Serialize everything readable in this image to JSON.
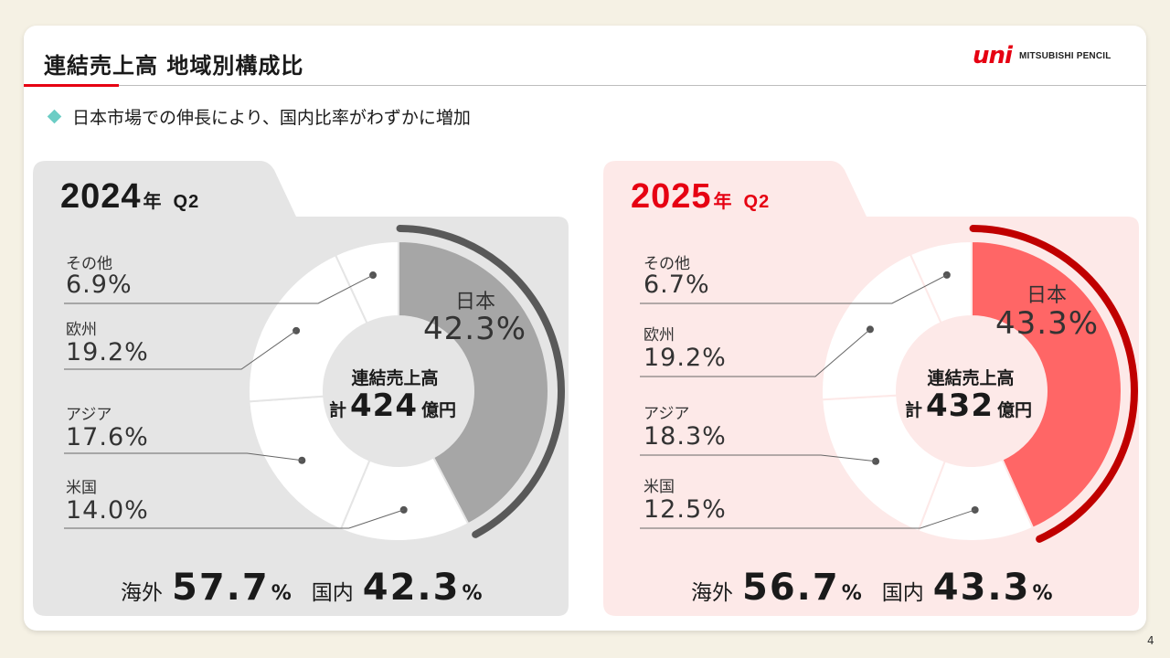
{
  "title": "連結売上高 地域別構成比",
  "logo": {
    "mark": "uni",
    "brand": "MITSUBISHI PENCIL"
  },
  "bullet": "日本市場での伸長により、国内比率がわずかに増加",
  "page_number": "4",
  "colors": {
    "panel_2024_bg": "#e5e5e5",
    "panel_2025_bg": "#fde9e8",
    "japan_2024": "#a6a6a6",
    "japan_2025": "#ff6666",
    "arc_2024": "#595959",
    "arc_2025": "#c00000",
    "year_2025": "#e60012"
  },
  "panels": [
    {
      "year": "2024",
      "nen": "年",
      "quarter": "Q2",
      "center_label": "連結売上高",
      "center_prefix": "計",
      "center_value": "424",
      "center_unit": "億円",
      "japan_label": "日本",
      "japan_pct": "42.3%",
      "labels": [
        {
          "name": "その他",
          "pct": "6.9%"
        },
        {
          "name": "欧州",
          "pct": "19.2%"
        },
        {
          "name": "アジア",
          "pct": "17.6%"
        },
        {
          "name": "米国",
          "pct": "14.0%"
        }
      ],
      "overseas_label": "海外",
      "overseas_value": "57.7",
      "domestic_label": "国内",
      "domestic_value": "42.3",
      "pct_sign": "%"
    },
    {
      "year": "2025",
      "nen": "年",
      "quarter": "Q2",
      "center_label": "連結売上高",
      "center_prefix": "計",
      "center_value": "432",
      "center_unit": "億円",
      "japan_label": "日本",
      "japan_pct": "43.3%",
      "labels": [
        {
          "name": "その他",
          "pct": "6.7%"
        },
        {
          "name": "欧州",
          "pct": "19.2%"
        },
        {
          "name": "アジア",
          "pct": "18.3%"
        },
        {
          "name": "米国",
          "pct": "12.5%"
        }
      ],
      "overseas_label": "海外",
      "overseas_value": "56.7",
      "domestic_label": "国内",
      "domestic_value": "43.3",
      "pct_sign": "%"
    }
  ],
  "chart_data": [
    {
      "type": "pie",
      "title": "2024年 Q2",
      "categories": [
        "日本",
        "米国",
        "アジア",
        "欧州",
        "その他"
      ],
      "values": [
        42.3,
        14.0,
        17.6,
        19.2,
        6.9
      ],
      "total": 424,
      "unit": "億円"
    },
    {
      "type": "pie",
      "title": "2025年 Q2",
      "categories": [
        "日本",
        "米国",
        "アジア",
        "欧州",
        "その他"
      ],
      "values": [
        43.3,
        12.5,
        18.3,
        19.2,
        6.7
      ],
      "total": 432,
      "unit": "億円"
    }
  ]
}
